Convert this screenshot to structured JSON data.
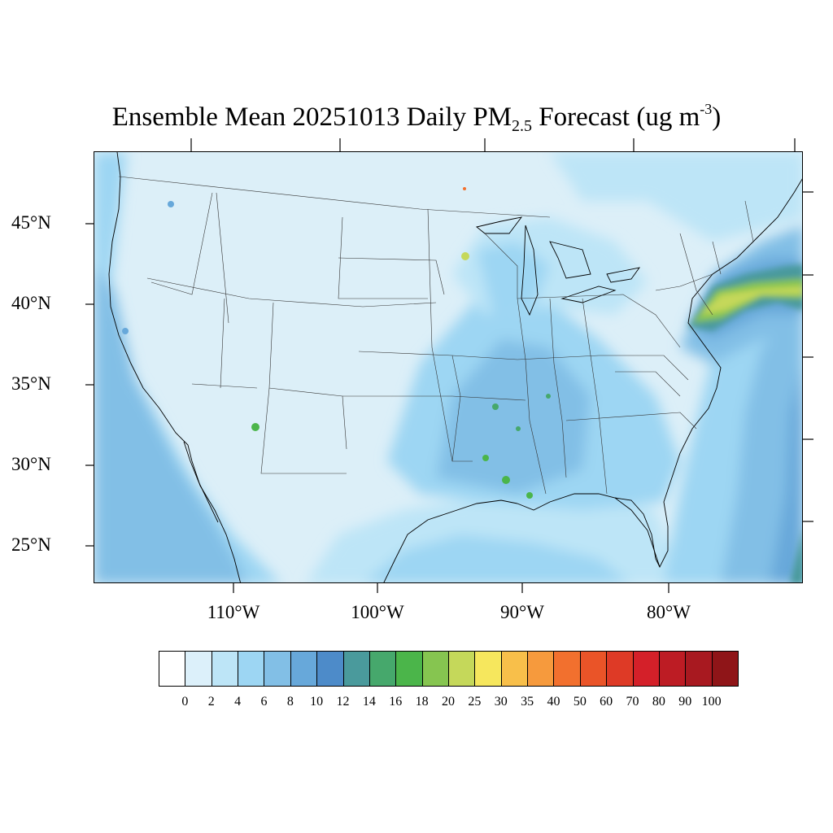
{
  "title": {
    "prefix": "Ensemble Mean 20251013 Daily PM",
    "subscript": "2.5",
    "middle": " Forecast (ug m",
    "superscript": "-3",
    "suffix": ")"
  },
  "axes": {
    "lat_labels": [
      "45°N",
      "40°N",
      "35°N",
      "30°N",
      "25°N"
    ],
    "lon_labels": [
      "110°W",
      "100°W",
      "90°W",
      "80°W"
    ]
  },
  "colorbar": {
    "labels": [
      "0",
      "2",
      "4",
      "6",
      "8",
      "10",
      "12",
      "14",
      "16",
      "18",
      "20",
      "25",
      "30",
      "35",
      "40",
      "50",
      "60",
      "70",
      "80",
      "90",
      "100"
    ],
    "colors": [
      "#ffffff",
      "#dcf0fa",
      "#bde5f7",
      "#9dd6f3",
      "#82bfe6",
      "#67a8da",
      "#4d8bc9",
      "#4a9a9c",
      "#46a86c",
      "#4bb54a",
      "#86c550",
      "#c5d85a",
      "#f6e75d",
      "#f8bf4a",
      "#f69a3d",
      "#f2702e",
      "#ea5428",
      "#de3a26",
      "#d42029",
      "#bd1c24",
      "#a81920",
      "#8f1518"
    ]
  },
  "map": {
    "background_color": "#dceff8",
    "coastline_color": "#000000",
    "state_border_color": "#333333"
  }
}
